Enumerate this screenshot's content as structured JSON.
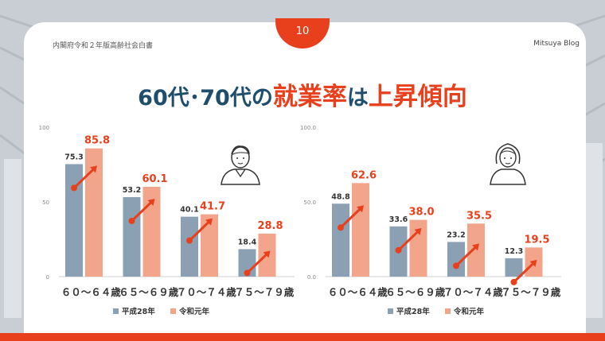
{
  "header": {
    "page_number": "10",
    "source": "内閣府令和２年版高齢社会白書",
    "brand": "Mitsuya Blog"
  },
  "title": {
    "part1": "60代･70代の",
    "part2": "就業率",
    "part3": "は",
    "part4": "上昇傾向"
  },
  "colors": {
    "accent": "#e8401c",
    "title_dark": "#1f4d6e",
    "series_h28": "#8ca0b3",
    "series_r1": "#f2a58a",
    "arrow": "#e8401c"
  },
  "icons": [
    "male-person-icon",
    "female-person-icon"
  ],
  "chart_data": [
    {
      "type": "bar",
      "categories": [
        "６０～６４歳",
        "６５～６９歳",
        "７０～７４歳",
        "７５～７９歳"
      ],
      "series": [
        {
          "name": "平成28年",
          "values": [
            75.3,
            53.2,
            40.1,
            18.4
          ]
        },
        {
          "name": "令和元年",
          "values": [
            85.8,
            60.1,
            41.7,
            28.8
          ]
        }
      ],
      "yticks": [
        "0",
        "50",
        "100"
      ],
      "ylim": [
        0,
        100
      ],
      "legend": "bottom",
      "value_labels": true
    },
    {
      "type": "bar",
      "categories": [
        "６０～６４歳",
        "６５～６９歳",
        "７０～７４歳",
        "７５～７９歳"
      ],
      "series": [
        {
          "name": "平成28年",
          "values": [
            48.8,
            33.6,
            23.2,
            12.3
          ]
        },
        {
          "name": "令和元年",
          "values": [
            62.6,
            38.0,
            35.5,
            19.5
          ]
        }
      ],
      "yticks": [
        "0.0",
        "50.0",
        "100.0"
      ],
      "ylim": [
        0,
        100
      ],
      "legend": "bottom",
      "value_labels": true
    }
  ]
}
